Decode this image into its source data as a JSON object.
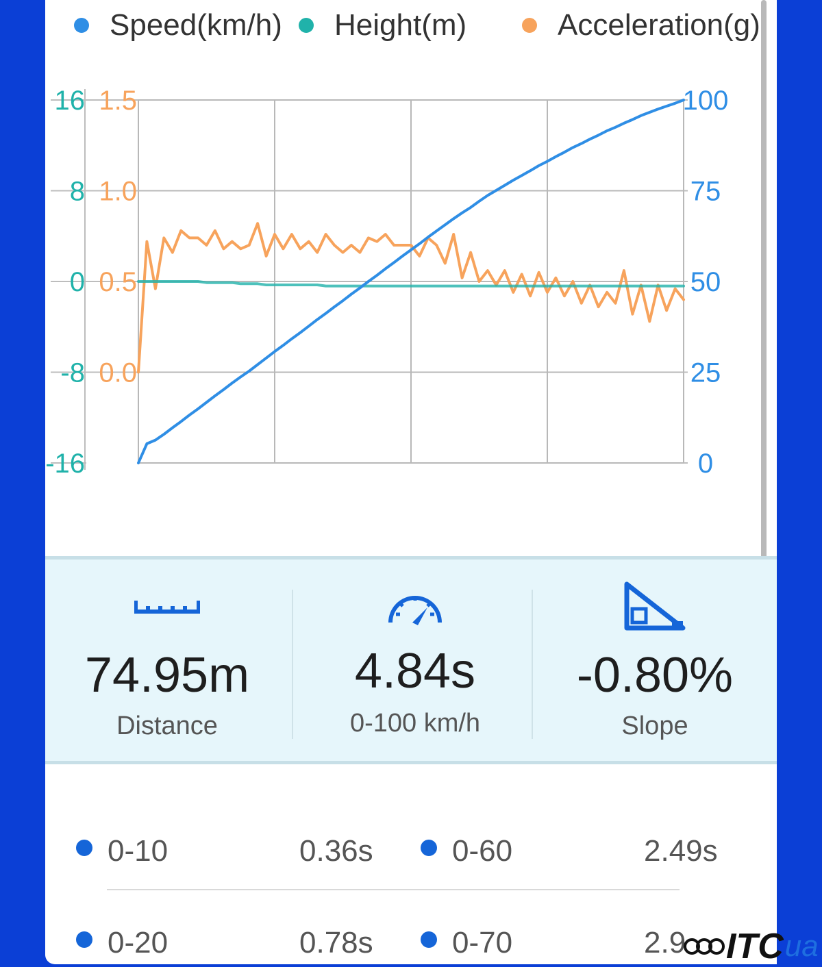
{
  "legend": [
    {
      "label": "Speed(km/h)",
      "color": "#2f8ee5"
    },
    {
      "label": "Height(m)",
      "color": "#20b2aa"
    },
    {
      "label": "Acceleration(g)",
      "color": "#f7a35c"
    }
  ],
  "chart_data": {
    "type": "line",
    "x": [
      0,
      0.25,
      0.5,
      0.75,
      1,
      1.25,
      1.5,
      1.75,
      2,
      2.25,
      2.5,
      2.75,
      3,
      3.25,
      3.5,
      3.75,
      4,
      4.25,
      4.5,
      4.75,
      5,
      5.25,
      5.5,
      5.75,
      6,
      6.25,
      6.5,
      6.75,
      7,
      7.25,
      7.5,
      7.75,
      8,
      8.25,
      8.5,
      8.75,
      9,
      9.25,
      9.5,
      9.75,
      10,
      10.25,
      10.5,
      10.75,
      11,
      11.25,
      11.5,
      11.75,
      12,
      12.25,
      12.5,
      12.75,
      13,
      13.25,
      13.5,
      13.75,
      14,
      14.25,
      14.5,
      14.75,
      15,
      15.25,
      15.5,
      15.75,
      16
    ],
    "series": [
      {
        "name": "Speed(km/h)",
        "color": "#2f8ee5",
        "axis": "right",
        "values": [
          0,
          5.3,
          6.3,
          7.9,
          9.7,
          11.4,
          13.2,
          14.9,
          16.7,
          18.5,
          20.2,
          22,
          23.7,
          25.3,
          27.1,
          28.9,
          30.7,
          32.4,
          34.2,
          35.9,
          37.7,
          39.5,
          41.2,
          43,
          44.7,
          46.5,
          48.2,
          50,
          51.7,
          53.5,
          55.2,
          57,
          58.7,
          60.4,
          62.2,
          63.9,
          65.6,
          67.3,
          68.9,
          70.4,
          72.1,
          73.7,
          75.1,
          76.5,
          77.9,
          79.2,
          80.5,
          81.9,
          83.1,
          84.4,
          85.6,
          86.9,
          88,
          89.2,
          90.3,
          91.5,
          92.5,
          93.6,
          94.6,
          95.7,
          96.6,
          97.5,
          98.3,
          99.1,
          100
        ]
      },
      {
        "name": "Height(m)",
        "color": "#20b2aa",
        "axis": "left-outer",
        "values": [
          0,
          0,
          0,
          0,
          0,
          0,
          0,
          0,
          -0.1,
          -0.1,
          -0.1,
          -0.1,
          -0.2,
          -0.2,
          -0.2,
          -0.3,
          -0.3,
          -0.3,
          -0.3,
          -0.3,
          -0.3,
          -0.3,
          -0.4,
          -0.4,
          -0.4,
          -0.4,
          -0.4,
          -0.4,
          -0.4,
          -0.4,
          -0.4,
          -0.4,
          -0.4,
          -0.4,
          -0.4,
          -0.4,
          -0.4,
          -0.4,
          -0.4,
          -0.4,
          -0.4,
          -0.4,
          -0.4,
          -0.4,
          -0.4,
          -0.4,
          -0.4,
          -0.4,
          -0.4,
          -0.4,
          -0.4,
          -0.4,
          -0.4,
          -0.4,
          -0.4,
          -0.4,
          -0.4,
          -0.4,
          -0.4,
          -0.4,
          -0.4,
          -0.4,
          -0.4,
          -0.4,
          -0.4
        ]
      },
      {
        "name": "Acceleration(g)",
        "color": "#f7a35c",
        "axis": "left-inner",
        "values": [
          0,
          0.72,
          0.46,
          0.74,
          0.66,
          0.78,
          0.74,
          0.74,
          0.7,
          0.78,
          0.68,
          0.72,
          0.68,
          0.7,
          0.82,
          0.64,
          0.76,
          0.68,
          0.76,
          0.68,
          0.72,
          0.66,
          0.76,
          0.7,
          0.66,
          0.7,
          0.66,
          0.74,
          0.72,
          0.76,
          0.7,
          0.7,
          0.7,
          0.64,
          0.74,
          0.7,
          0.6,
          0.76,
          0.52,
          0.66,
          0.5,
          0.56,
          0.48,
          0.56,
          0.44,
          0.54,
          0.42,
          0.55,
          0.44,
          0.52,
          0.42,
          0.5,
          0.38,
          0.48,
          0.36,
          0.44,
          0.38,
          0.56,
          0.32,
          0.48,
          0.28,
          0.48,
          0.34,
          0.46,
          0.4
        ]
      }
    ],
    "left_outer_axis": {
      "ticks": [
        "16",
        "8",
        "0",
        "-8",
        "-16"
      ],
      "range": [
        -16,
        16
      ],
      "color": "#20b2aa"
    },
    "left_inner_axis": {
      "ticks": [
        "1.5",
        "1.0",
        "0.5",
        "0.0"
      ],
      "range": [
        -0.5,
        1.5
      ],
      "color": "#f7a35c"
    },
    "right_axis": {
      "ticks": [
        "100",
        "75",
        "50",
        "25",
        "0"
      ],
      "range": [
        0,
        100
      ],
      "color": "#2f8ee5"
    },
    "grid": true,
    "legend_position": "top"
  },
  "stats": {
    "distance": {
      "value": "74.95m",
      "label": "Distance"
    },
    "time": {
      "value": "4.84s",
      "label": "0-100 km/h"
    },
    "slope": {
      "value": "-0.80%",
      "label": "Slope"
    }
  },
  "splits": {
    "row1": [
      {
        "label": "0-10",
        "value": "0.36s"
      },
      {
        "label": "0-60",
        "value": "2.49s"
      }
    ],
    "row2": [
      {
        "label": "0-20",
        "value": "0.78s"
      },
      {
        "label": "0-70",
        "value": "2.9"
      }
    ]
  },
  "watermark": {
    "text1": "ITC",
    "text2": "ua"
  },
  "colors": {
    "accent": "#1565d8",
    "stats_bg": "#e6f6fb",
    "frame": "#0b3fd6"
  }
}
